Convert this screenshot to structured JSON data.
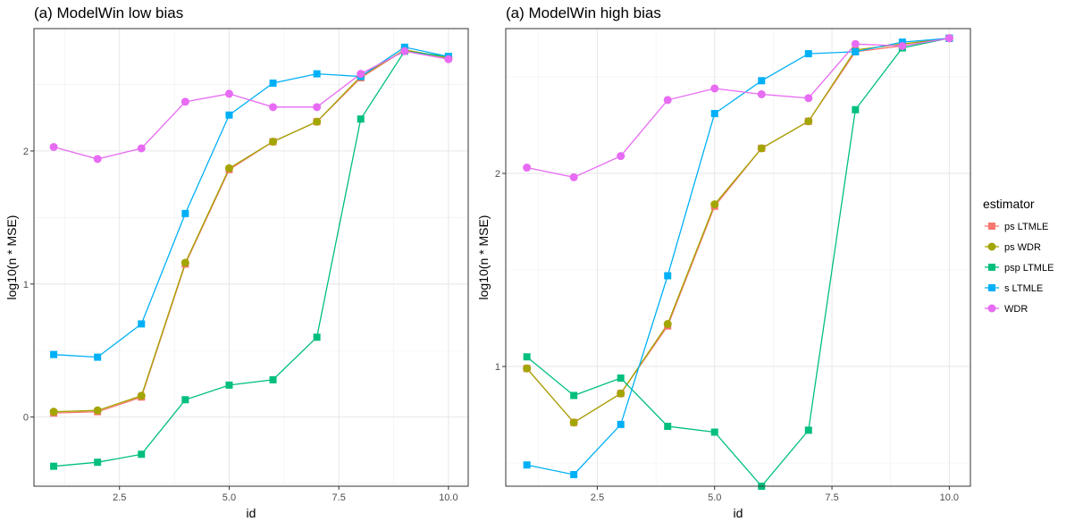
{
  "colors": {
    "ps LTMLE": "#F8766D",
    "ps WDR": "#A3A500",
    "psp LTMLE": "#00BF7D",
    "s LTMLE": "#00B0F6",
    "WDR": "#E76BF3"
  },
  "legend": {
    "title": "estimator",
    "entries": [
      {
        "name": "ps LTMLE",
        "shape": "square"
      },
      {
        "name": "ps WDR",
        "shape": "circle"
      },
      {
        "name": "psp LTMLE",
        "shape": "square"
      },
      {
        "name": "s LTMLE",
        "shape": "square"
      },
      {
        "name": "WDR",
        "shape": "circle"
      }
    ],
    "placement": "right"
  },
  "chart_data": [
    {
      "type": "line",
      "title": "(a) ModelWin low bias",
      "xlabel": "id",
      "ylabel": "log10(n * MSE)",
      "xlim": [
        0.55,
        10.45
      ],
      "ylim": [
        -0.52,
        2.92
      ],
      "xticks": [
        2.5,
        5.0,
        7.5,
        10.0
      ],
      "xtick_labels": [
        "2.5",
        "5.0",
        "7.5",
        "10.0"
      ],
      "yticks": [
        0,
        1,
        2
      ],
      "ytick_labels": [
        "0",
        "1",
        "2"
      ],
      "grid": true,
      "x": [
        1,
        2,
        3,
        4,
        5,
        6,
        7,
        8,
        9,
        10
      ],
      "series": [
        {
          "name": "ps LTMLE",
          "marker": "square",
          "values": [
            0.03,
            0.04,
            0.15,
            1.15,
            1.86,
            2.07,
            2.22,
            2.55,
            2.76,
            2.7
          ]
        },
        {
          "name": "ps WDR",
          "marker": "circle",
          "values": [
            0.04,
            0.05,
            0.16,
            1.16,
            1.87,
            2.07,
            2.22,
            2.56,
            2.76,
            2.7
          ]
        },
        {
          "name": "psp LTMLE",
          "marker": "square",
          "values": [
            -0.37,
            -0.34,
            -0.28,
            0.13,
            0.24,
            0.28,
            0.6,
            2.24,
            2.75,
            2.71
          ]
        },
        {
          "name": "s LTMLE",
          "marker": "square",
          "values": [
            0.47,
            0.45,
            0.7,
            1.53,
            2.27,
            2.51,
            2.58,
            2.56,
            2.78,
            2.71
          ]
        },
        {
          "name": "WDR",
          "marker": "circle",
          "values": [
            2.03,
            1.94,
            2.02,
            2.37,
            2.43,
            2.33,
            2.33,
            2.58,
            2.75,
            2.69
          ]
        }
      ]
    },
    {
      "type": "line",
      "title": "(a) ModelWin high bias",
      "xlabel": "id",
      "ylabel": "log10(n * MSE)",
      "xlim": [
        0.55,
        10.45
      ],
      "ylim": [
        0.38,
        2.75
      ],
      "xticks": [
        2.5,
        5.0,
        7.5,
        10.0
      ],
      "xtick_labels": [
        "2.5",
        "5.0",
        "7.5",
        "10.0"
      ],
      "yticks": [
        1,
        2
      ],
      "ytick_labels": [
        "1",
        "2"
      ],
      "grid": true,
      "x": [
        1,
        2,
        3,
        4,
        5,
        6,
        7,
        8,
        9,
        10
      ],
      "series": [
        {
          "name": "ps LTMLE",
          "marker": "square",
          "values": [
            0.99,
            0.71,
            0.86,
            1.21,
            1.83,
            2.13,
            2.27,
            2.63,
            2.66,
            2.7
          ]
        },
        {
          "name": "ps WDR",
          "marker": "circle",
          "values": [
            0.99,
            0.71,
            0.86,
            1.22,
            1.84,
            2.13,
            2.27,
            2.64,
            2.67,
            2.7
          ]
        },
        {
          "name": "psp LTMLE",
          "marker": "square",
          "values": [
            1.05,
            0.85,
            0.94,
            0.69,
            0.66,
            0.38,
            0.67,
            2.33,
            2.65,
            2.7
          ]
        },
        {
          "name": "s LTMLE",
          "marker": "square",
          "values": [
            0.49,
            0.44,
            0.7,
            1.47,
            2.31,
            2.48,
            2.62,
            2.63,
            2.68,
            2.7
          ]
        },
        {
          "name": "WDR",
          "marker": "circle",
          "values": [
            2.03,
            1.98,
            2.09,
            2.38,
            2.44,
            2.41,
            2.39,
            2.67,
            2.66,
            2.7
          ]
        }
      ]
    }
  ]
}
